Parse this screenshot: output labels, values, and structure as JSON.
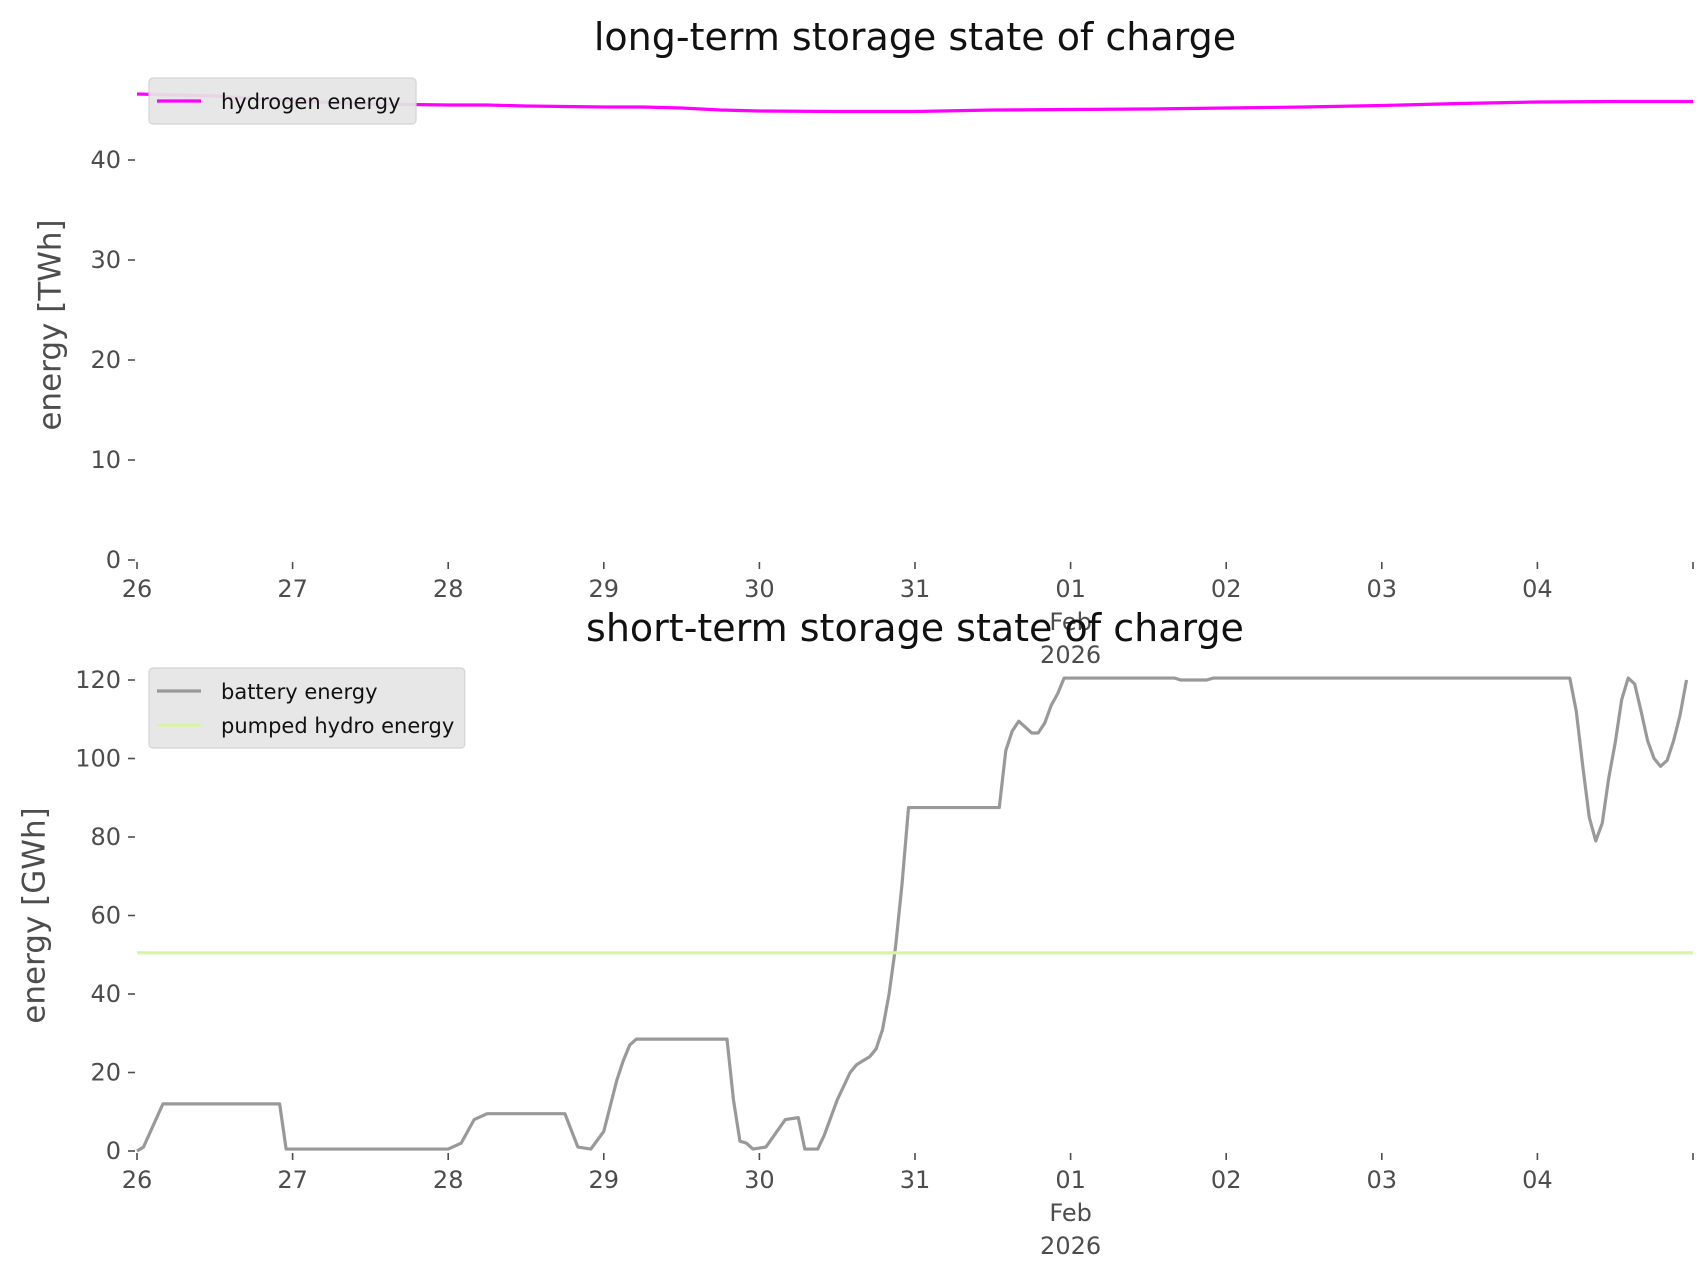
{
  "chart_data": [
    {
      "type": "line",
      "title": "long-term storage state of charge",
      "xlabel": "",
      "ylabel": "energy [TWh]",
      "ylim": [
        0,
        47
      ],
      "xlim": [
        "2026-01-26",
        "2026-02-05"
      ],
      "x_tick_labels": [
        {
          "date": "2026-01-26",
          "lines": [
            "26"
          ]
        },
        {
          "date": "2026-01-27",
          "lines": [
            "27"
          ]
        },
        {
          "date": "2026-01-28",
          "lines": [
            "28"
          ]
        },
        {
          "date": "2026-01-29",
          "lines": [
            "29"
          ]
        },
        {
          "date": "2026-01-30",
          "lines": [
            "30"
          ]
        },
        {
          "date": "2026-01-31",
          "lines": [
            "31"
          ]
        },
        {
          "date": "2026-02-01",
          "lines": [
            "01",
            "Feb",
            "2026"
          ]
        },
        {
          "date": "2026-02-02",
          "lines": [
            "02"
          ]
        },
        {
          "date": "2026-02-03",
          "lines": [
            "03"
          ]
        },
        {
          "date": "2026-02-04",
          "lines": [
            "04"
          ]
        }
      ],
      "y_ticks": [
        0,
        10,
        20,
        30,
        40
      ],
      "grid": false,
      "legend_position": "top-left",
      "series": [
        {
          "name": "hydrogen energy",
          "color": "#ff00ff",
          "points": [
            [
              "2026-01-26 00:00",
              46.6
            ],
            [
              "2026-01-26 12:00",
              46.4
            ],
            [
              "2026-01-27 00:00",
              45.9
            ],
            [
              "2026-01-27 12:00",
              45.6
            ],
            [
              "2026-01-28 00:00",
              45.5
            ],
            [
              "2026-01-28 06:00",
              45.5
            ],
            [
              "2026-01-28 12:00",
              45.4
            ],
            [
              "2026-01-29 00:00",
              45.3
            ],
            [
              "2026-01-29 06:00",
              45.3
            ],
            [
              "2026-01-29 12:00",
              45.2
            ],
            [
              "2026-01-29 18:00",
              45.0
            ],
            [
              "2026-01-30 00:00",
              44.9
            ],
            [
              "2026-01-30 12:00",
              44.85
            ],
            [
              "2026-01-31 00:00",
              44.85
            ],
            [
              "2026-01-31 12:00",
              45.0
            ],
            [
              "2026-02-01 00:00",
              45.05
            ],
            [
              "2026-02-01 12:00",
              45.1
            ],
            [
              "2026-02-02 00:00",
              45.2
            ],
            [
              "2026-02-02 12:00",
              45.3
            ],
            [
              "2026-02-03 00:00",
              45.45
            ],
            [
              "2026-02-03 12:00",
              45.65
            ],
            [
              "2026-02-04 00:00",
              45.8
            ],
            [
              "2026-02-04 12:00",
              45.85
            ],
            [
              "2026-02-05 00:00",
              45.85
            ]
          ]
        }
      ]
    },
    {
      "type": "line",
      "title": "short-term storage state of charge",
      "xlabel": "",
      "ylabel": "energy [GWh]",
      "ylim": [
        0,
        120
      ],
      "xlim": [
        "2026-01-26",
        "2026-02-05"
      ],
      "x_tick_labels": [
        {
          "date": "2026-01-26",
          "lines": [
            "26"
          ]
        },
        {
          "date": "2026-01-27",
          "lines": [
            "27"
          ]
        },
        {
          "date": "2026-01-28",
          "lines": [
            "28"
          ]
        },
        {
          "date": "2026-01-29",
          "lines": [
            "29"
          ]
        },
        {
          "date": "2026-01-30",
          "lines": [
            "30"
          ]
        },
        {
          "date": "2026-01-31",
          "lines": [
            "31"
          ]
        },
        {
          "date": "2026-02-01",
          "lines": [
            "01",
            "Feb",
            "2026"
          ]
        },
        {
          "date": "2026-02-02",
          "lines": [
            "02"
          ]
        },
        {
          "date": "2026-02-03",
          "lines": [
            "03"
          ]
        },
        {
          "date": "2026-02-04",
          "lines": [
            "04"
          ]
        }
      ],
      "y_ticks": [
        0,
        20,
        40,
        60,
        80,
        100,
        120
      ],
      "grid": false,
      "legend_position": "top-left",
      "series": [
        {
          "name": "battery energy",
          "color": "#999999",
          "points": [
            [
              "2026-01-26 00:00",
              0
            ],
            [
              "2026-01-26 01:00",
              1
            ],
            [
              "2026-01-26 04:00",
              12
            ],
            [
              "2026-01-26 22:00",
              12
            ],
            [
              "2026-01-26 23:00",
              0.5
            ],
            [
              "2026-01-28 00:00",
              0.5
            ],
            [
              "2026-01-28 02:00",
              2
            ],
            [
              "2026-01-28 04:00",
              8
            ],
            [
              "2026-01-28 06:00",
              9.5
            ],
            [
              "2026-01-28 18:00",
              9.5
            ],
            [
              "2026-01-28 20:00",
              1
            ],
            [
              "2026-01-28 22:00",
              0.5
            ],
            [
              "2026-01-29 00:00",
              5
            ],
            [
              "2026-01-29 02:00",
              18
            ],
            [
              "2026-01-29 03:00",
              23
            ],
            [
              "2026-01-29 04:00",
              27
            ],
            [
              "2026-01-29 05:00",
              28.5
            ],
            [
              "2026-01-29 19:00",
              28.5
            ],
            [
              "2026-01-29 20:00",
              13
            ],
            [
              "2026-01-29 21:00",
              2.5
            ],
            [
              "2026-01-29 22:00",
              2
            ],
            [
              "2026-01-29 23:00",
              0.5
            ],
            [
              "2026-01-30 01:00",
              1
            ],
            [
              "2026-01-30 04:00",
              8
            ],
            [
              "2026-01-30 06:00",
              8.5
            ],
            [
              "2026-01-30 07:00",
              0.5
            ],
            [
              "2026-01-30 09:00",
              0.5
            ],
            [
              "2026-01-30 10:00",
              4
            ],
            [
              "2026-01-30 12:00",
              13
            ],
            [
              "2026-01-30 14:00",
              20
            ],
            [
              "2026-01-30 15:00",
              22
            ],
            [
              "2026-01-30 17:00",
              24
            ],
            [
              "2026-01-30 18:00",
              26
            ],
            [
              "2026-01-30 19:00",
              31
            ],
            [
              "2026-01-30 20:00",
              40
            ],
            [
              "2026-01-30 21:00",
              52
            ],
            [
              "2026-01-30 22:00",
              68
            ],
            [
              "2026-01-30 23:00",
              87.5
            ],
            [
              "2026-01-31 13:00",
              87.5
            ],
            [
              "2026-01-31 14:00",
              102
            ],
            [
              "2026-01-31 15:00",
              107
            ],
            [
              "2026-01-31 16:00",
              109.5
            ],
            [
              "2026-01-31 18:00",
              106.5
            ],
            [
              "2026-01-31 19:00",
              106.5
            ],
            [
              "2026-01-31 20:00",
              109
            ],
            [
              "2026-01-31 21:00",
              113.5
            ],
            [
              "2026-01-31 22:00",
              116.5
            ],
            [
              "2026-01-31 23:00",
              120.5
            ],
            [
              "2026-02-01 16:00",
              120.5
            ],
            [
              "2026-02-01 17:00",
              120
            ],
            [
              "2026-02-01 21:00",
              120
            ],
            [
              "2026-02-01 22:00",
              120.5
            ],
            [
              "2026-02-04 05:00",
              120.5
            ],
            [
              "2026-02-04 06:00",
              112
            ],
            [
              "2026-02-04 07:00",
              98
            ],
            [
              "2026-02-04 08:00",
              85
            ],
            [
              "2026-02-04 09:00",
              79
            ],
            [
              "2026-02-04 10:00",
              83.5
            ],
            [
              "2026-02-04 11:00",
              95
            ],
            [
              "2026-02-04 12:00",
              104
            ],
            [
              "2026-02-04 13:00",
              115
            ],
            [
              "2026-02-04 14:00",
              120.5
            ],
            [
              "2026-02-04 15:00",
              119
            ],
            [
              "2026-02-04 16:00",
              112
            ],
            [
              "2026-02-04 17:00",
              104.5
            ],
            [
              "2026-02-04 18:00",
              100
            ],
            [
              "2026-02-04 19:00",
              98
            ],
            [
              "2026-02-04 20:00",
              99.5
            ],
            [
              "2026-02-04 21:00",
              104.5
            ],
            [
              "2026-02-04 22:00",
              111
            ],
            [
              "2026-02-04 23:00",
              120
            ]
          ]
        },
        {
          "name": "pumped hydro energy",
          "color": "#d8f5a2",
          "points": [
            [
              "2026-01-26 00:00",
              50.5
            ],
            [
              "2026-02-05 00:00",
              50.5
            ]
          ]
        }
      ]
    }
  ]
}
